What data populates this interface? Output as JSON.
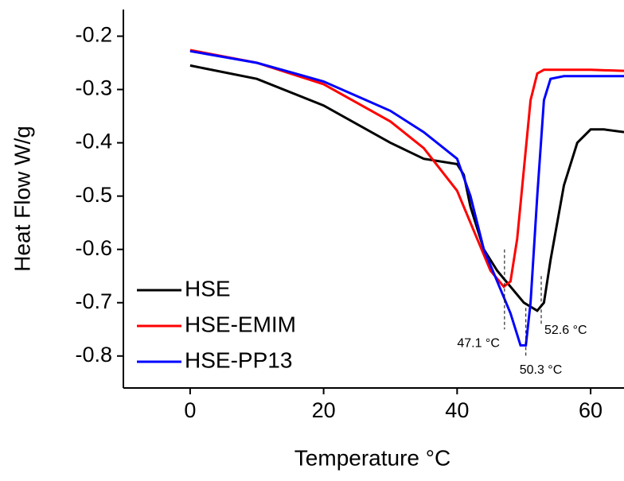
{
  "chart_data": {
    "type": "line",
    "xlabel": "Temperature °C",
    "ylabel": "Heat Flow W/g",
    "xlim": [
      -10,
      65
    ],
    "ylim": [
      -0.86,
      -0.15
    ],
    "xticks": [
      0,
      20,
      40,
      60
    ],
    "yticks": [
      -0.2,
      -0.3,
      -0.4,
      -0.5,
      -0.6,
      -0.7,
      -0.8
    ],
    "legend": "lower left",
    "series": [
      {
        "name": "HSE",
        "color": "#000000",
        "x": [
          0,
          10,
          20,
          30,
          35,
          40,
          41,
          42,
          44,
          46,
          48,
          50,
          52,
          53,
          54,
          56,
          58,
          60,
          62,
          65
        ],
        "values": [
          -0.255,
          -0.28,
          -0.33,
          -0.4,
          -0.43,
          -0.44,
          -0.46,
          -0.52,
          -0.6,
          -0.64,
          -0.67,
          -0.7,
          -0.715,
          -0.7,
          -0.62,
          -0.48,
          -0.4,
          -0.375,
          -0.375,
          -0.38
        ]
      },
      {
        "name": "HSE-EMIM",
        "color": "#ff0000",
        "x": [
          0,
          10,
          20,
          30,
          35,
          40,
          43,
          45,
          47,
          48,
          49,
          50,
          51,
          52,
          53,
          60,
          65
        ],
        "values": [
          -0.226,
          -0.25,
          -0.29,
          -0.36,
          -0.41,
          -0.49,
          -0.58,
          -0.64,
          -0.67,
          -0.66,
          -0.58,
          -0.45,
          -0.32,
          -0.27,
          -0.263,
          -0.263,
          -0.265
        ]
      },
      {
        "name": "HSE-PP13",
        "color": "#0000ff",
        "x": [
          0,
          10,
          20,
          30,
          35,
          40,
          42,
          44,
          46,
          48,
          49.5,
          50.3,
          51,
          52,
          53,
          54,
          56,
          65
        ],
        "values": [
          -0.228,
          -0.25,
          -0.285,
          -0.34,
          -0.38,
          -0.43,
          -0.5,
          -0.6,
          -0.66,
          -0.72,
          -0.78,
          -0.78,
          -0.7,
          -0.5,
          -0.32,
          -0.28,
          -0.275,
          -0.275
        ]
      }
    ],
    "annotations": [
      {
        "text": "47.1 °C",
        "x": 47.1,
        "y": [
          -0.6,
          -0.75
        ]
      },
      {
        "text": "50.3 °C",
        "x": 50.3,
        "y": [
          -0.71,
          -0.8
        ]
      },
      {
        "text": "52.6 °C",
        "x": 52.6,
        "y": [
          -0.65,
          -0.74
        ]
      }
    ]
  }
}
